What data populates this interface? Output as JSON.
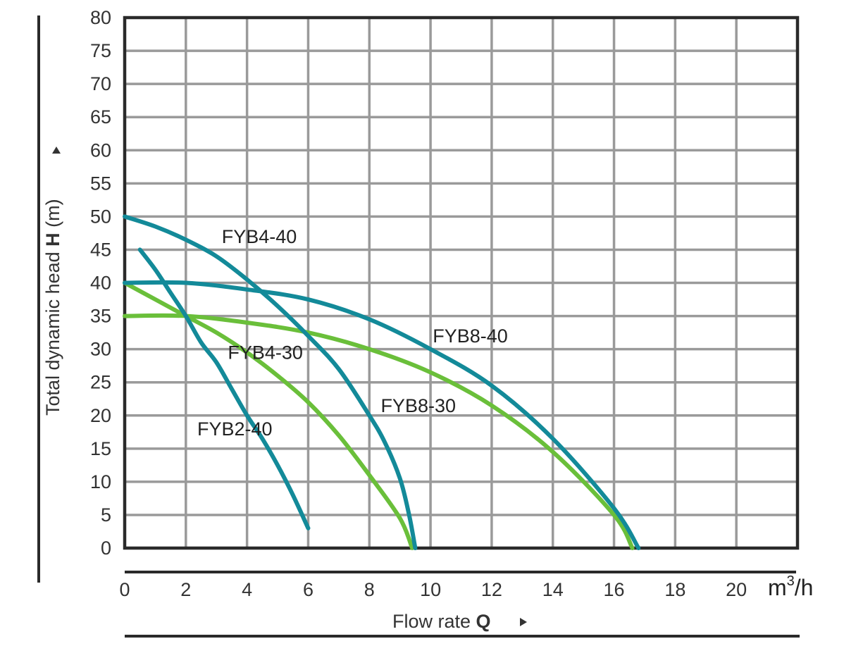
{
  "chart_data": {
    "type": "line",
    "title": "",
    "xlabel": {
      "prefix": "Flow rate ",
      "symbol": "Q"
    },
    "ylabel": {
      "prefix": "Total dynamic head ",
      "symbol": "H",
      "suffix": " (m)"
    },
    "x_unit": {
      "base": "m",
      "sup": "3",
      "rest": "/h"
    },
    "xlim": [
      0,
      22
    ],
    "ylim": [
      0,
      80
    ],
    "xticks": [
      0,
      2,
      4,
      6,
      8,
      10,
      12,
      14,
      16,
      18,
      20
    ],
    "yticks": [
      0,
      5,
      10,
      15,
      20,
      25,
      30,
      35,
      40,
      45,
      50,
      55,
      60,
      65,
      70,
      75,
      80
    ],
    "grid": true,
    "legend": "none",
    "colors": {
      "teal": "#138a99",
      "green": "#6abf3a",
      "grid": "#9a9a9a",
      "frame": "#2a2a2a"
    },
    "series": [
      {
        "name": "FYB2-40",
        "color": "teal",
        "points": [
          [
            0.5,
            45
          ],
          [
            1,
            42
          ],
          [
            1.5,
            38.5
          ],
          [
            2,
            35
          ],
          [
            2.5,
            31
          ],
          [
            3,
            28
          ],
          [
            3.5,
            24
          ],
          [
            4,
            20
          ],
          [
            4.5,
            16.5
          ],
          [
            5,
            12.5
          ],
          [
            5.5,
            8
          ],
          [
            6,
            3
          ]
        ],
        "label_at": [
          3.6,
          17
        ]
      },
      {
        "name": "FYB4-40",
        "color": "teal",
        "points": [
          [
            0,
            50
          ],
          [
            1,
            48.5
          ],
          [
            2,
            46.5
          ],
          [
            3,
            44
          ],
          [
            4,
            40.5
          ],
          [
            5,
            36.5
          ],
          [
            6,
            32
          ],
          [
            7,
            27
          ],
          [
            8,
            20
          ],
          [
            8.5,
            16
          ],
          [
            9,
            10.5
          ],
          [
            9.3,
            5
          ],
          [
            9.5,
            0
          ]
        ],
        "label_at": [
          4.4,
          46
        ]
      },
      {
        "name": "FYB4-30",
        "color": "green",
        "points": [
          [
            0,
            40
          ],
          [
            1,
            37.5
          ],
          [
            2,
            35
          ],
          [
            3,
            32.5
          ],
          [
            4,
            29.5
          ],
          [
            5,
            26
          ],
          [
            6,
            22
          ],
          [
            7,
            17
          ],
          [
            8,
            11
          ],
          [
            9,
            4.5
          ],
          [
            9.4,
            0
          ]
        ],
        "label_at": [
          4.6,
          28.5
        ]
      },
      {
        "name": "FYB8-40",
        "color": "teal",
        "points": [
          [
            0,
            40
          ],
          [
            2,
            40
          ],
          [
            4,
            39
          ],
          [
            6,
            37.5
          ],
          [
            8,
            34.5
          ],
          [
            10,
            30
          ],
          [
            12,
            24.5
          ],
          [
            14,
            16.5
          ],
          [
            16,
            6
          ],
          [
            16.8,
            0
          ]
        ],
        "label_at": [
          11.3,
          31
        ]
      },
      {
        "name": "FYB8-30",
        "color": "green",
        "points": [
          [
            0,
            35
          ],
          [
            2,
            35
          ],
          [
            4,
            34
          ],
          [
            6,
            32.5
          ],
          [
            8,
            30
          ],
          [
            10,
            26.5
          ],
          [
            12,
            21.5
          ],
          [
            14,
            14.5
          ],
          [
            16,
            5
          ],
          [
            16.6,
            0
          ]
        ],
        "label_at": [
          9.6,
          20.5
        ]
      }
    ]
  }
}
